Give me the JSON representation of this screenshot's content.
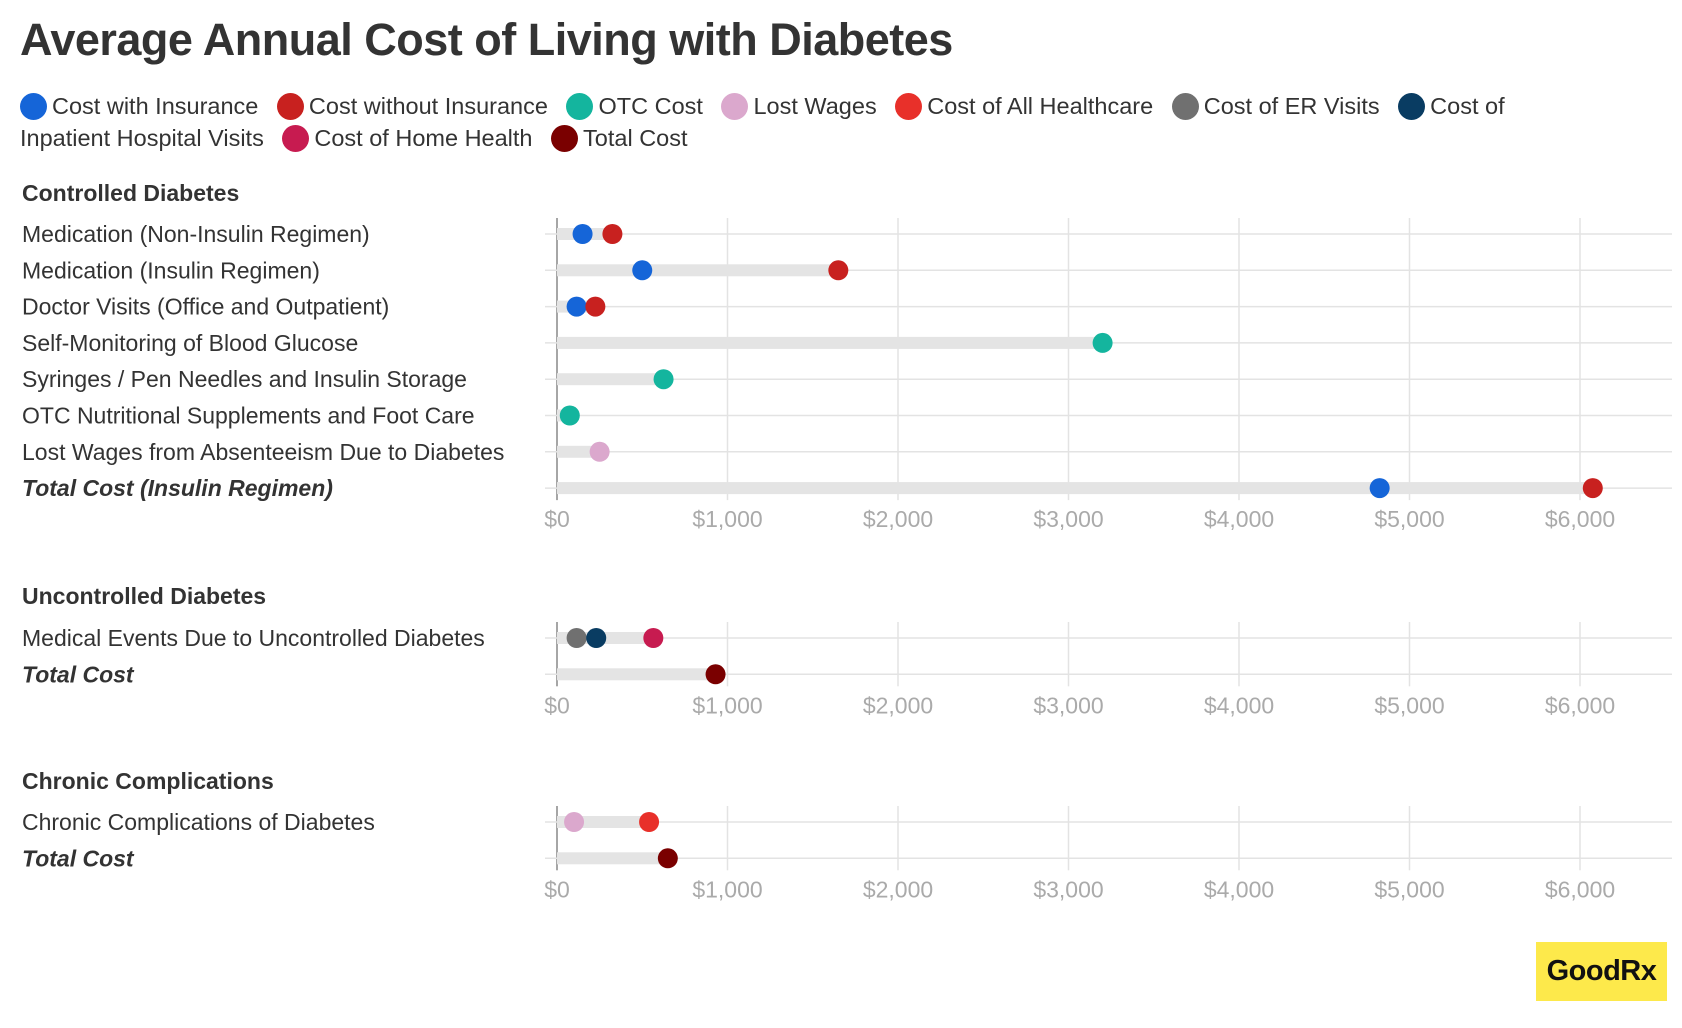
{
  "title": "Average Annual Cost of Living with Diabetes",
  "legend": [
    {
      "label": "Cost with Insurance",
      "color": "#1565d8"
    },
    {
      "label": "Cost without Insurance",
      "color": "#c8211f"
    },
    {
      "label": "OTC Cost",
      "color": "#14b59e"
    },
    {
      "label": "Lost Wages",
      "color": "#dba8cd"
    },
    {
      "label": "Cost of All Healthcare",
      "color": "#e8302a"
    },
    {
      "label": "Cost of ER Visits",
      "color": "#707070"
    },
    {
      "label": "Cost of Inpatient Hospital Visits",
      "color": "#093c62"
    },
    {
      "label": "Cost of Home Health",
      "color": "#c71b50"
    },
    {
      "label": "Total Cost",
      "color": "#7a0000"
    }
  ],
  "logo": {
    "text": "GoodRx"
  },
  "chart_data": [
    {
      "type": "dot",
      "title": "Controlled Diabetes",
      "x_ticks": [
        "$0",
        "$1,000",
        "$2,000",
        "$3,000",
        "$4,000",
        "$5,000",
        "$6,000"
      ],
      "xlim": [
        0,
        6500
      ],
      "grid": true,
      "rows": [
        {
          "label": "Medication (Non-Insulin Regimen)",
          "total": false,
          "points": [
            {
              "series": "Cost with Insurance",
              "value": 150
            },
            {
              "series": "Cost without Insurance",
              "value": 325
            }
          ]
        },
        {
          "label": "Medication (Insulin Regimen)",
          "total": false,
          "points": [
            {
              "series": "Cost with Insurance",
              "value": 500
            },
            {
              "series": "Cost without Insurance",
              "value": 1650
            }
          ]
        },
        {
          "label": "Doctor Visits (Office and Outpatient)",
          "total": false,
          "points": [
            {
              "series": "Cost with Insurance",
              "value": 115
            },
            {
              "series": "Cost without Insurance",
              "value": 225
            }
          ]
        },
        {
          "label": "Self-Monitoring of Blood Glucose",
          "total": false,
          "points": [
            {
              "series": "OTC Cost",
              "value": 3200
            }
          ]
        },
        {
          "label": "Syringes / Pen Needles and Insulin Storage",
          "total": false,
          "points": [
            {
              "series": "OTC Cost",
              "value": 625
            }
          ]
        },
        {
          "label": "OTC Nutritional Supplements and Foot Care",
          "total": false,
          "points": [
            {
              "series": "OTC Cost",
              "value": 75
            }
          ]
        },
        {
          "label": "Lost Wages from Absenteeism Due to Diabetes",
          "total": false,
          "points": [
            {
              "series": "Lost Wages",
              "value": 250
            }
          ]
        },
        {
          "label": "Total Cost (Insulin Regimen)",
          "total": true,
          "points": [
            {
              "series": "Cost with Insurance",
              "value": 4825
            },
            {
              "series": "Cost without Insurance",
              "value": 6075
            }
          ]
        }
      ]
    },
    {
      "type": "dot",
      "title": "Uncontrolled Diabetes",
      "x_ticks": [
        "$0",
        "$1,000",
        "$2,000",
        "$3,000",
        "$4,000",
        "$5,000",
        "$6,000"
      ],
      "xlim": [
        0,
        6500
      ],
      "grid": true,
      "rows": [
        {
          "label": "Medical Events Due to Uncontrolled Diabetes",
          "total": false,
          "points": [
            {
              "series": "Cost of ER Visits",
              "value": 115
            },
            {
              "series": "Cost of Inpatient Hospital Visits",
              "value": 230
            },
            {
              "series": "Cost of Home Health",
              "value": 565
            }
          ]
        },
        {
          "label": "Total Cost",
          "total": true,
          "points": [
            {
              "series": "Total Cost",
              "value": 930
            }
          ]
        }
      ]
    },
    {
      "type": "dot",
      "title": "Chronic Complications",
      "x_ticks": [
        "$0",
        "$1,000",
        "$2,000",
        "$3,000",
        "$4,000",
        "$5,000",
        "$6,000"
      ],
      "xlim": [
        0,
        6500
      ],
      "grid": true,
      "rows": [
        {
          "label": "Chronic Complications of Diabetes",
          "total": false,
          "points": [
            {
              "series": "Lost Wages",
              "value": 100
            },
            {
              "series": "Cost of All Healthcare",
              "value": 540
            }
          ]
        },
        {
          "label": "Total Cost",
          "total": true,
          "points": [
            {
              "series": "Total Cost",
              "value": 650
            }
          ]
        }
      ]
    }
  ]
}
